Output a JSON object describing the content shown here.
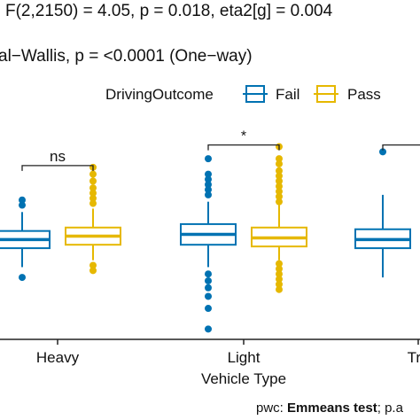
{
  "chart_data": {
    "type": "box",
    "stats_top": "F(2,2150) = 4.05, p = 0.018, eta2[g] = 0.004",
    "stats_kruskal": "al−Wallis, p = <0.0001 (One−way)",
    "legend": {
      "title": "DrivingOutcome",
      "placement": "top-right",
      "entries": [
        {
          "label": "Fail",
          "color": "#0072B2"
        },
        {
          "label": "Pass",
          "color": "#E6B800"
        }
      ]
    },
    "xlabel": "Vehicle Type",
    "categories": [
      "Heavy",
      "Light",
      "Tru"
    ],
    "ylim": [
      0,
      12
    ],
    "grid": false,
    "series": [
      {
        "name": "Fail",
        "color": "#0072B2",
        "boxes": [
          {
            "category": "Heavy",
            "q1": 5.3,
            "median": 5.8,
            "q3": 6.3,
            "whisker_low": 4.2,
            "whisker_high": 7.4,
            "outliers": [
              3.6,
              7.8,
              8.1
            ]
          },
          {
            "category": "Light",
            "q1": 5.5,
            "median": 6.1,
            "q3": 6.7,
            "whisker_low": 4.2,
            "whisker_high": 8.0,
            "outliers": [
              0.6,
              1.8,
              2.5,
              3.0,
              3.4,
              3.8,
              8.4,
              8.7,
              9.0,
              9.3,
              9.6,
              10.5
            ]
          },
          {
            "category": "Tru",
            "q1": 5.3,
            "median": 5.8,
            "q3": 6.4,
            "whisker_low": 3.6,
            "whisker_high": 8.4,
            "outliers": [
              10.9
            ]
          }
        ]
      },
      {
        "name": "Pass",
        "color": "#E6B800",
        "boxes": [
          {
            "category": "Heavy",
            "q1": 5.5,
            "median": 6.0,
            "q3": 6.5,
            "whisker_low": 4.6,
            "whisker_high": 7.6,
            "outliers": [
              4.0,
              4.3,
              7.9,
              8.2,
              8.5,
              8.8,
              9.2,
              9.6,
              10.0
            ]
          },
          {
            "category": "Light",
            "q1": 5.4,
            "median": 5.9,
            "q3": 6.5,
            "whisker_low": 4.6,
            "whisker_high": 7.8,
            "outliers": [
              2.9,
              3.2,
              3.5,
              3.8,
              4.1,
              4.4,
              8.0,
              8.3,
              8.6,
              8.9,
              9.2,
              9.5,
              9.8,
              10.2,
              10.5,
              11.2
            ]
          }
        ]
      }
    ],
    "brackets": [
      {
        "category": "Heavy",
        "label": "ns",
        "y": 10.1
      },
      {
        "category": "Light",
        "label": "*",
        "y": 11.3
      },
      {
        "category": "Tru",
        "label": "",
        "y": 11.3
      }
    ],
    "footer": {
      "prefix": "pwc: ",
      "bold": "Emmeans test",
      "suffix": "; p.a"
    }
  }
}
